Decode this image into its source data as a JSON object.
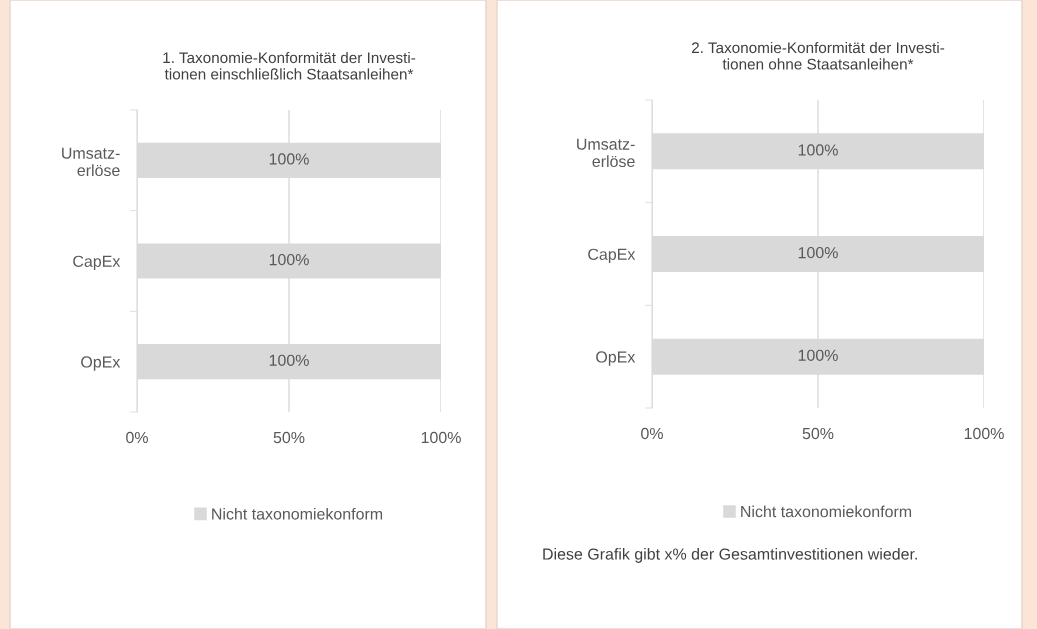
{
  "chart_data": [
    {
      "type": "bar",
      "orientation": "horizontal",
      "title": "1. Taxonomie-Konformität der Investi-\ntionen einschließlich Staatsanleihen*",
      "categories": [
        "Umsatz-\nerlöse",
        "CapEx",
        "OpEx"
      ],
      "series": [
        {
          "name": "Nicht taxonomiekonform",
          "color": "#d9d9d9",
          "values": [
            100,
            100,
            100
          ],
          "value_labels": [
            "100%",
            "100%",
            "100%"
          ]
        }
      ],
      "xlim": [
        0,
        100
      ],
      "xticks": [
        {
          "value": 0,
          "label": "0%"
        },
        {
          "value": 50,
          "label": "50%"
        },
        {
          "value": 100,
          "label": "100%"
        }
      ],
      "grid": "x",
      "legend": "bottom"
    },
    {
      "type": "bar",
      "orientation": "horizontal",
      "title": "2. Taxonomie-Konformität der Investi-\ntionen ohne Staatsanleihen*",
      "categories": [
        "Umsatz-\nerlöse",
        "CapEx",
        "OpEx"
      ],
      "series": [
        {
          "name": "Nicht taxonomiekonform",
          "color": "#d9d9d9",
          "values": [
            100,
            100,
            100
          ],
          "value_labels": [
            "100%",
            "100%",
            "100%"
          ]
        }
      ],
      "xlim": [
        0,
        100
      ],
      "xticks": [
        {
          "value": 0,
          "label": "0%"
        },
        {
          "value": 50,
          "label": "50%"
        },
        {
          "value": 100,
          "label": "100%"
        }
      ],
      "grid": "x",
      "legend": "bottom",
      "annotations": [
        "Diese Grafik gibt x% der Gesamtinvestitionen wieder."
      ]
    }
  ]
}
